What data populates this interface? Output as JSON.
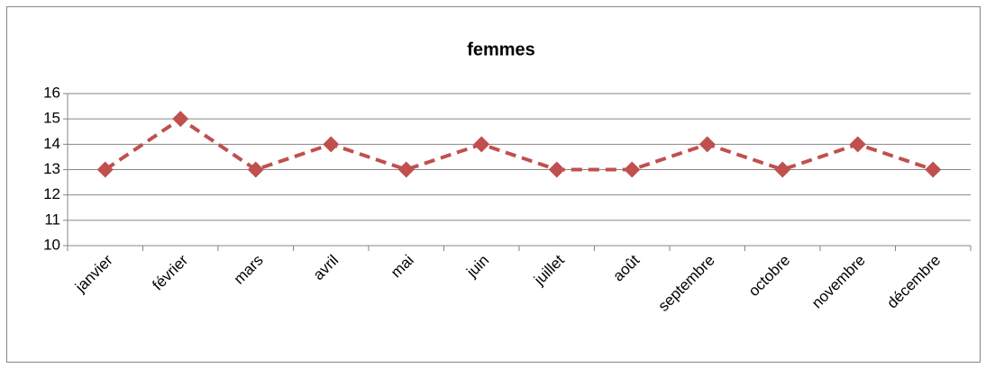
{
  "chart_data": {
    "type": "line",
    "title": "femmes",
    "categories": [
      "janvier",
      "février",
      "mars",
      "avril",
      "mai",
      "juin",
      "juillet",
      "août",
      "septembre",
      "octobre",
      "novembre",
      "décembre"
    ],
    "values": [
      13,
      15,
      13,
      14,
      13,
      14,
      13,
      13,
      14,
      13,
      14,
      13
    ],
    "color": "#c0504d",
    "line_style": "dashed",
    "marker": "diamond",
    "ylim": [
      10,
      16
    ],
    "yticks": [
      10,
      11,
      12,
      13,
      14,
      15,
      16
    ],
    "grid": true
  }
}
